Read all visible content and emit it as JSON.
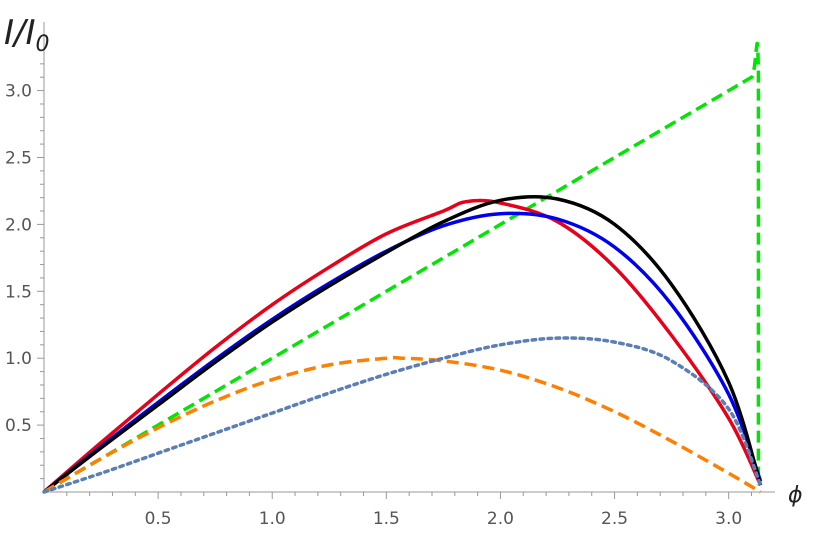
{
  "chart_data": {
    "type": "line",
    "ylabel_main": "I/I",
    "ylabel_sub": "0",
    "xlabel": "ϕ",
    "xlim": [
      0,
      3.1416
    ],
    "ylim": [
      0,
      3.3
    ],
    "xticks": [
      0.5,
      1.0,
      1.5,
      2.0,
      2.5,
      3.0
    ],
    "xtick_labels": [
      "0.5",
      "1.0",
      "1.5",
      "2.0",
      "2.5",
      "3.0"
    ],
    "yticks": [
      0.5,
      1.0,
      1.5,
      2.0,
      2.5,
      3.0
    ],
    "ytick_labels": [
      "0.5",
      "1.0",
      "1.5",
      "2.0",
      "2.5",
      "3.0"
    ],
    "grid": false,
    "series": [
      {
        "color": "#00e600",
        "style": "dashed",
        "x": [
          0,
          0.3,
          0.6,
          0.9,
          1.2,
          1.5,
          1.8,
          2.1,
          2.4,
          2.7,
          3.0,
          3.1,
          3.13,
          3.13
        ],
        "y": [
          0,
          0.3,
          0.6,
          0.9,
          1.2,
          1.5,
          1.8,
          2.1,
          2.4,
          2.7,
          3.0,
          3.1,
          3.13,
          0.05
        ]
      },
      {
        "color": "#e8001a",
        "style": "solid",
        "x": [
          0,
          0.25,
          0.5,
          0.75,
          1.0,
          1.25,
          1.5,
          1.75,
          1.85,
          2.0,
          2.25,
          2.5,
          2.75,
          3.0,
          3.14
        ],
        "y": [
          0,
          0.37,
          0.73,
          1.08,
          1.4,
          1.68,
          1.93,
          2.1,
          2.17,
          2.16,
          2.02,
          1.68,
          1.17,
          0.55,
          0.05
        ]
      },
      {
        "color": "#0000ee",
        "style": "solid",
        "x": [
          0,
          0.25,
          0.5,
          0.75,
          1.0,
          1.25,
          1.5,
          1.75,
          2.0,
          2.25,
          2.5,
          2.75,
          3.0,
          3.14
        ],
        "y": [
          0,
          0.34,
          0.67,
          0.99,
          1.29,
          1.56,
          1.8,
          1.99,
          2.08,
          2.04,
          1.83,
          1.4,
          0.73,
          0.08
        ]
      },
      {
        "color": "#000000",
        "style": "solid",
        "x": [
          0,
          0.25,
          0.5,
          0.75,
          1.0,
          1.25,
          1.5,
          1.75,
          2.0,
          2.25,
          2.5,
          2.75,
          3.0,
          3.14
        ],
        "y": [
          0,
          0.33,
          0.65,
          0.97,
          1.27,
          1.54,
          1.79,
          2.02,
          2.18,
          2.19,
          2.0,
          1.55,
          0.82,
          0.05
        ]
      },
      {
        "color": "#ff8000",
        "style": "dashed",
        "x": [
          0,
          0.25,
          0.5,
          0.75,
          1.0,
          1.25,
          1.5,
          1.57,
          1.75,
          2.0,
          2.25,
          2.5,
          2.75,
          3.0,
          3.14
        ],
        "y": [
          0,
          0.25,
          0.48,
          0.68,
          0.84,
          0.95,
          1.0,
          1.0,
          0.98,
          0.91,
          0.78,
          0.6,
          0.38,
          0.14,
          0.0
        ]
      },
      {
        "color": "#5b7eb5",
        "style": "dotted",
        "x": [
          0,
          0.25,
          0.5,
          0.75,
          1.0,
          1.25,
          1.5,
          1.75,
          2.0,
          2.25,
          2.5,
          2.75,
          3.0,
          3.14
        ],
        "y": [
          0,
          0.14,
          0.29,
          0.44,
          0.59,
          0.74,
          0.88,
          1.0,
          1.1,
          1.15,
          1.12,
          0.98,
          0.62,
          0.05
        ]
      }
    ]
  }
}
